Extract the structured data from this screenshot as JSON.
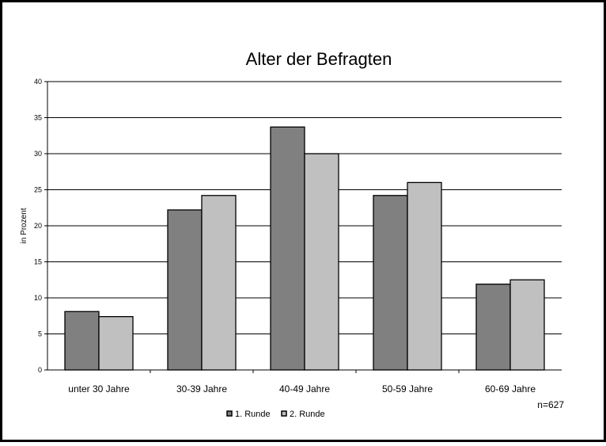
{
  "chart_data": {
    "type": "bar",
    "title": "Alter der Befragten",
    "ylabel": "in Prozent",
    "xlabel": "",
    "ylim": [
      0,
      40
    ],
    "yticks": [
      0,
      5,
      10,
      15,
      20,
      25,
      30,
      35,
      40
    ],
    "grid": true,
    "legend_position": "bottom-center",
    "categories": [
      "unter 30 Jahre",
      "30-39 Jahre",
      "40-49 Jahre",
      "50-59 Jahre",
      "60-69 Jahre"
    ],
    "series": [
      {
        "name": "1. Runde",
        "color": "#808080",
        "values": [
          8.1,
          22.2,
          33.7,
          24.2,
          11.9
        ]
      },
      {
        "name": "2. Runde",
        "color": "#c0c0c0",
        "values": [
          7.4,
          24.2,
          30.0,
          26.0,
          12.5
        ]
      }
    ],
    "annotation": "n=627"
  }
}
